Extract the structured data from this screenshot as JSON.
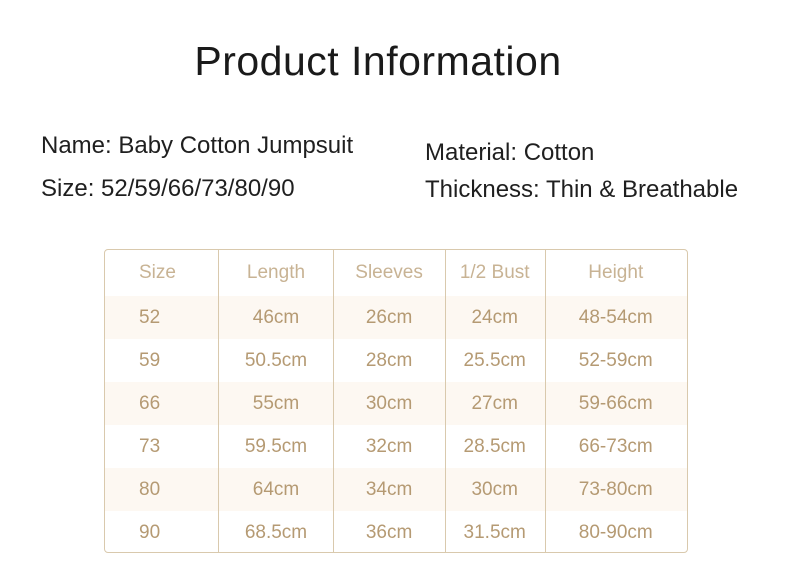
{
  "title": "Product Information",
  "info": {
    "name": "Name: Baby Cotton Jumpsuit",
    "size": "Size: 52/59/66/73/80/90",
    "material": "Material: Cotton",
    "thickness": "Thickness: Thin & Breathable"
  },
  "colors": {
    "accent_text": "#b59a73",
    "border": "#d9c9ad",
    "stripe": "#fdf8f2"
  },
  "table": {
    "headers": [
      "Size",
      "Length",
      "Sleeves",
      "1/2 Bust",
      "Height"
    ],
    "rows": [
      [
        "52",
        "46cm",
        "26cm",
        "24cm",
        "48-54cm"
      ],
      [
        "59",
        "50.5cm",
        "28cm",
        "25.5cm",
        "52-59cm"
      ],
      [
        "66",
        "55cm",
        "30cm",
        "27cm",
        "59-66cm"
      ],
      [
        "73",
        "59.5cm",
        "32cm",
        "28.5cm",
        "66-73cm"
      ],
      [
        "80",
        "64cm",
        "34cm",
        "30cm",
        "73-80cm"
      ],
      [
        "90",
        "68.5cm",
        "36cm",
        "31.5cm",
        "80-90cm"
      ]
    ]
  }
}
